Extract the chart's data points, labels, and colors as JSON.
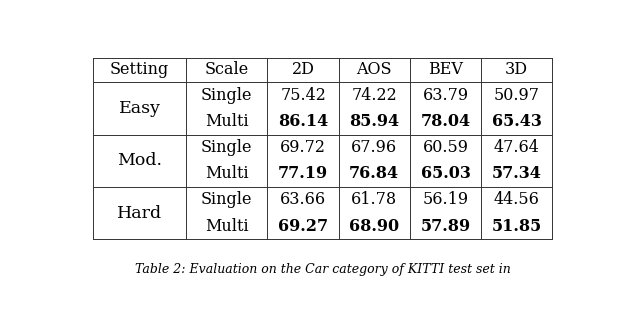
{
  "headers": [
    "Setting",
    "Scale",
    "2D",
    "AOS",
    "BEV",
    "3D"
  ],
  "rows": [
    [
      "Easy",
      "Single",
      "75.42",
      "74.22",
      "63.79",
      "50.97"
    ],
    [
      "Easy",
      "Multi",
      "86.14",
      "85.94",
      "78.04",
      "65.43"
    ],
    [
      "Mod.",
      "Single",
      "69.72",
      "67.96",
      "60.59",
      "47.64"
    ],
    [
      "Mod.",
      "Multi",
      "77.19",
      "76.84",
      "65.03",
      "57.34"
    ],
    [
      "Hard",
      "Single",
      "63.66",
      "61.78",
      "56.19",
      "44.56"
    ],
    [
      "Hard",
      "Multi",
      "69.27",
      "68.90",
      "57.89",
      "51.85"
    ]
  ],
  "bold_rows": [
    1,
    3,
    5
  ],
  "caption": "Table 2: Evaluation on the Car category of KITTI test set in",
  "background_color": "#ffffff",
  "line_color": "#333333",
  "header_fontsize": 11.5,
  "body_fontsize": 11.5,
  "setting_fontsize": 12.5
}
